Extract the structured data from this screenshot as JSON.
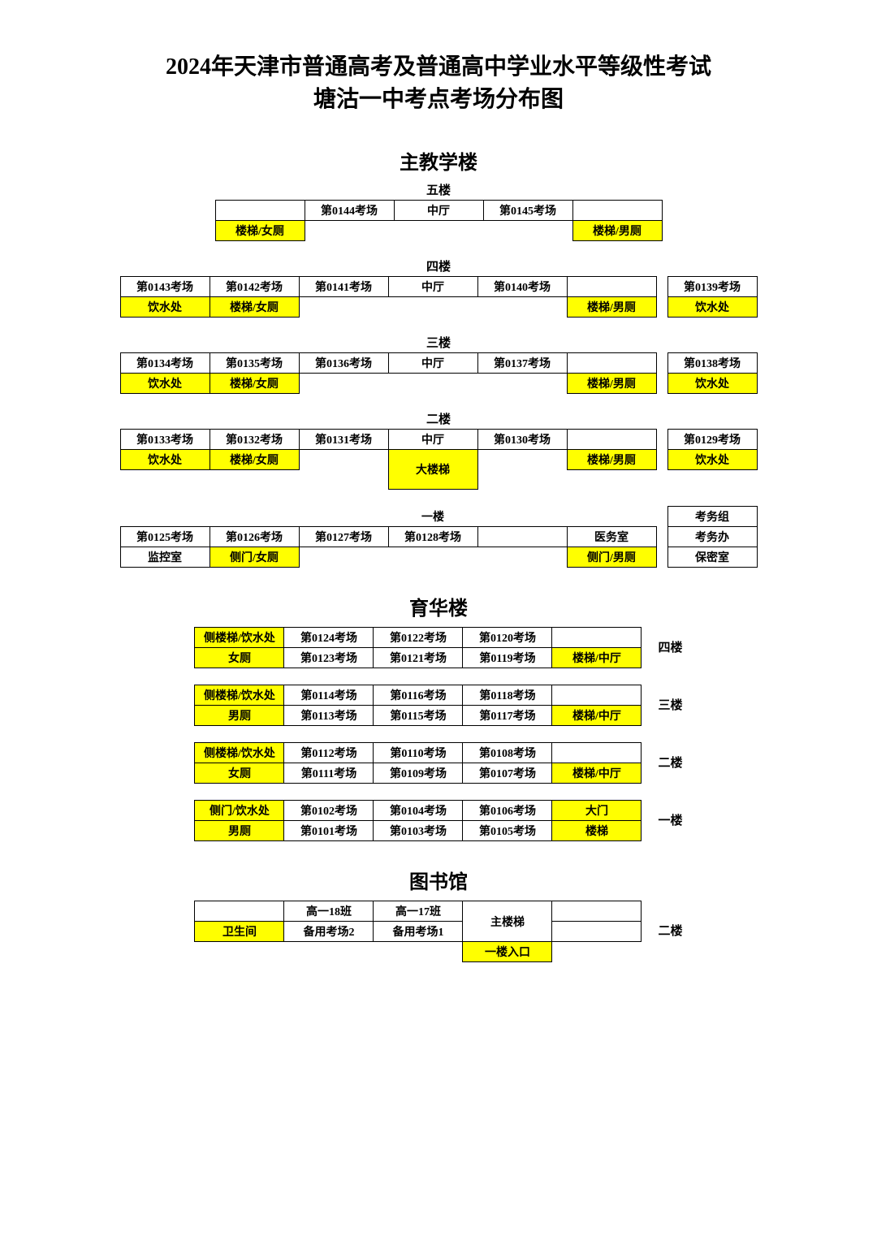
{
  "title_line1": "2024年天津市普通高考及普通高中学业水平等级性考试",
  "title_line2": "塘沽一中考点考场分布图",
  "colors": {
    "highlight": "#ffff00",
    "border": "#000000",
    "background": "#ffffff",
    "text": "#000000"
  },
  "building_a": {
    "name": "主教学楼",
    "floor5": {
      "label": "五楼",
      "row1": [
        "",
        "第0144考场",
        "中厅",
        "第0145考场",
        ""
      ],
      "row2": [
        "楼梯/女厕",
        "",
        "",
        "",
        "楼梯/男厕"
      ],
      "hl": [
        [
          0,
          0,
          0,
          0,
          0
        ],
        [
          1,
          0,
          0,
          0,
          1
        ]
      ]
    },
    "floor4": {
      "label": "四楼",
      "row1": [
        "第0143考场",
        "第0142考场",
        "第0141考场",
        "中厅",
        "第0140考场",
        "",
        "第0139考场"
      ],
      "row2": [
        "饮水处",
        "楼梯/女厕",
        "",
        "",
        "",
        "楼梯/男厕",
        "饮水处"
      ],
      "hl": [
        [
          0,
          0,
          0,
          0,
          0,
          0,
          0
        ],
        [
          1,
          1,
          0,
          0,
          0,
          1,
          1
        ]
      ]
    },
    "floor3": {
      "label": "三楼",
      "row1": [
        "第0134考场",
        "第0135考场",
        "第0136考场",
        "中厅",
        "第0137考场",
        "",
        "第0138考场"
      ],
      "row2": [
        "饮水处",
        "楼梯/女厕",
        "",
        "",
        "",
        "楼梯/男厕",
        "饮水处"
      ],
      "hl": [
        [
          0,
          0,
          0,
          0,
          0,
          0,
          0
        ],
        [
          1,
          1,
          0,
          0,
          0,
          1,
          1
        ]
      ]
    },
    "floor2": {
      "label": "二楼",
      "row1": [
        "第0133考场",
        "第0132考场",
        "第0131考场",
        "中厅",
        "第0130考场",
        "",
        "第0129考场"
      ],
      "row2": [
        "饮水处",
        "楼梯/女厕",
        "",
        "大楼梯",
        "",
        "楼梯/男厕",
        "饮水处"
      ],
      "hl": [
        [
          0,
          0,
          0,
          0,
          0,
          0,
          0
        ],
        [
          1,
          1,
          0,
          1,
          0,
          1,
          1
        ]
      ],
      "big_stair": "大楼梯"
    },
    "floor1": {
      "label": "一楼",
      "top_right": "考务组",
      "row1": [
        "第0125考场",
        "第0126考场",
        "第0127考场",
        "第0128考场",
        "",
        "医务室",
        "考务办"
      ],
      "row2": [
        "监控室",
        "侧门/女厕",
        "",
        "",
        "",
        "侧门/男厕",
        "保密室"
      ],
      "hl": [
        [
          0,
          0,
          0,
          0,
          0,
          0,
          0
        ],
        [
          0,
          1,
          0,
          0,
          0,
          1,
          0
        ]
      ]
    }
  },
  "building_b": {
    "name": "育华楼",
    "floors": [
      {
        "side": "四楼",
        "row1": [
          "侧楼梯/饮水处",
          "第0124考场",
          "第0122考场",
          "第0120考场",
          ""
        ],
        "row2": [
          "女厕",
          "第0123考场",
          "第0121考场",
          "第0119考场",
          "楼梯/中厅"
        ],
        "hl": [
          [
            1,
            0,
            0,
            0,
            0
          ],
          [
            1,
            0,
            0,
            0,
            1
          ]
        ]
      },
      {
        "side": "三楼",
        "row1": [
          "侧楼梯/饮水处",
          "第0114考场",
          "第0116考场",
          "第0118考场",
          ""
        ],
        "row2": [
          "男厕",
          "第0113考场",
          "第0115考场",
          "第0117考场",
          "楼梯/中厅"
        ],
        "hl": [
          [
            1,
            0,
            0,
            0,
            0
          ],
          [
            1,
            0,
            0,
            0,
            1
          ]
        ]
      },
      {
        "side": "二楼",
        "row1": [
          "侧楼梯/饮水处",
          "第0112考场",
          "第0110考场",
          "第0108考场",
          ""
        ],
        "row2": [
          "女厕",
          "第0111考场",
          "第0109考场",
          "第0107考场",
          "楼梯/中厅"
        ],
        "hl": [
          [
            1,
            0,
            0,
            0,
            0
          ],
          [
            1,
            0,
            0,
            0,
            1
          ]
        ]
      },
      {
        "side": "一楼",
        "row1": [
          "侧门/饮水处",
          "第0102考场",
          "第0104考场",
          "第0106考场",
          "大门"
        ],
        "row2": [
          "男厕",
          "第0101考场",
          "第0103考场",
          "第0105考场",
          "楼梯"
        ],
        "hl": [
          [
            1,
            0,
            0,
            0,
            1
          ],
          [
            1,
            0,
            0,
            0,
            1
          ]
        ]
      }
    ]
  },
  "library": {
    "name": "图书馆",
    "side": "二楼",
    "row1": [
      "",
      "高一18班",
      "高一17班",
      "主楼梯",
      ""
    ],
    "row2": [
      "卫生间",
      "备用考场2",
      "备用考场1",
      "主楼梯",
      ""
    ],
    "entrance": "一楼入口",
    "hl_row2_col0": 1,
    "hl_entrance": 1
  }
}
